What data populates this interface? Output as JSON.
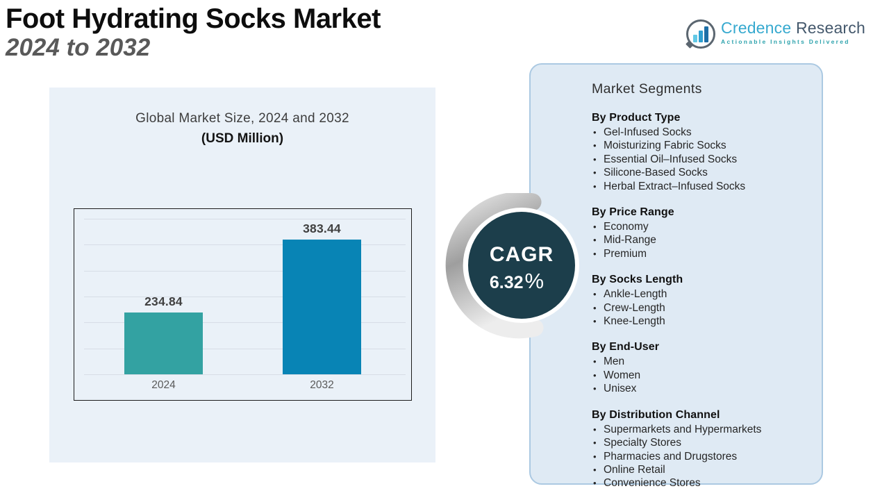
{
  "page": {
    "title_line1": "Foot Hydrating Socks Market",
    "title_line2": "2024 to 2032"
  },
  "logo": {
    "brand_word1": "Credence",
    "brand_word2": "Research",
    "tagline": "Actionable Insights Delivered",
    "icon": "bar-chart-speech-bubble-icon",
    "colors": {
      "brand_blue": "#36a9cf",
      "brand_dark": "#44586c",
      "tagline_teal": "#2ea3ad"
    }
  },
  "chart_data": {
    "type": "bar",
    "title": "Global Market Size, 2024 and 2032",
    "subtitle": "(USD Million)",
    "categories": [
      "2024",
      "2032"
    ],
    "values": [
      234.84,
      383.44
    ],
    "value_labels": [
      "234.84",
      "383.44"
    ],
    "ylabel": "",
    "xlabel": "",
    "unit": "USD Million",
    "ylim": [
      110,
      445
    ],
    "grid": true,
    "legend": false,
    "bar_colors": [
      "#33a2a2",
      "#0884b5"
    ]
  },
  "cagr": {
    "label": "CAGR",
    "value": "6.32",
    "percent_sign": "%",
    "circle_color": "#1c3e4b",
    "text_color": "#ffffff"
  },
  "segments_panel": {
    "title": "Market Segments",
    "groups": [
      {
        "heading": "By Product Type",
        "items": [
          "Gel-Infused Socks",
          "Moisturizing Fabric Socks",
          "Essential Oil–Infused Socks",
          "Silicone-Based Socks",
          "Herbal Extract–Infused Socks"
        ]
      },
      {
        "heading": "By Price Range",
        "items": [
          "Economy",
          "Mid-Range",
          "Premium"
        ]
      },
      {
        "heading": "By Socks Length",
        "items": [
          "Ankle-Length",
          "Crew-Length",
          "Knee-Length"
        ]
      },
      {
        "heading": "By End-User",
        "items": [
          "Men",
          "Women",
          "Unisex"
        ]
      },
      {
        "heading": "By Distribution Channel",
        "items": [
          "Supermarkets and Hypermarkets",
          "Specialty Stores",
          "Pharmacies and Drugstores",
          "Online Retail",
          "Convenience Stores"
        ]
      }
    ]
  }
}
